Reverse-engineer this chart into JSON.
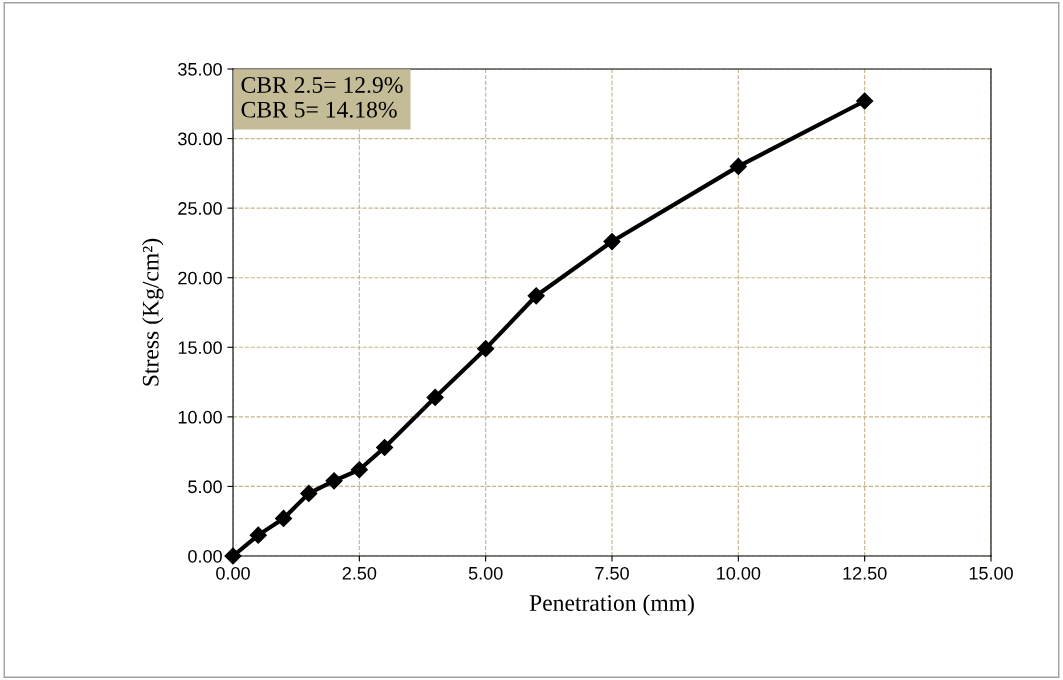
{
  "chart_data": {
    "type": "line",
    "xlabel": "Penetration (mm)",
    "ylabel": "Stress (Kg/cm²)",
    "annotations": [
      "CBR 2.5= 12.9%\nCBR 5= 14.18%"
    ],
    "series": [
      {
        "color": "#000000",
        "x": [
          0,
          0.5,
          1,
          1.5,
          2,
          2.5,
          3,
          4,
          5,
          6,
          7.5,
          10,
          12.5
        ],
        "values": [
          0,
          1.5,
          2.7,
          4.5,
          5.4,
          6.2,
          7.8,
          11.4,
          14.9,
          18.7,
          22.6,
          28.0,
          32.7
        ]
      }
    ],
    "marker": "diamond",
    "line_style": "solid",
    "grid": true,
    "legend": false,
    "xlim": [
      0,
      15
    ],
    "ylim": [
      0,
      35
    ],
    "xticks": [
      {
        "value": 0,
        "label": "0.00"
      },
      {
        "value": 2.5,
        "label": "2.50"
      },
      {
        "value": 5,
        "label": "5.00"
      },
      {
        "value": 7.5,
        "label": "7.50"
      },
      {
        "value": 10,
        "label": "10.00"
      },
      {
        "value": 12.5,
        "label": "12.50"
      },
      {
        "value": 15,
        "label": "15.00"
      }
    ],
    "yticks": [
      {
        "value": 0,
        "label": "0.00"
      },
      {
        "value": 5,
        "label": "5.00"
      },
      {
        "value": 10,
        "label": "10.00"
      },
      {
        "value": 15,
        "label": "15.00"
      },
      {
        "value": 20,
        "label": "20.00"
      },
      {
        "value": 25,
        "label": "25.00"
      },
      {
        "value": 30,
        "label": "30.00"
      },
      {
        "value": 35,
        "label": "35.00"
      }
    ]
  }
}
